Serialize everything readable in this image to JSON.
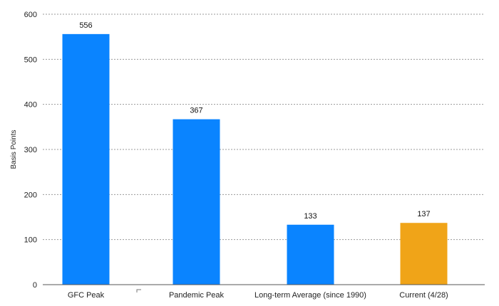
{
  "chart_data": {
    "type": "bar",
    "title": "",
    "xlabel": "",
    "ylabel": "Basis Points",
    "ylim": [
      0,
      600
    ],
    "yticks": [
      0,
      100,
      200,
      300,
      400,
      500,
      600
    ],
    "grid": true,
    "categories": [
      "GFC Peak",
      "Pandemic Peak",
      "Long-term Average (since 1990)",
      "Current (4/28)"
    ],
    "values": [
      556,
      367,
      133,
      137
    ],
    "data_labels": [
      "556",
      "367",
      "133",
      "137"
    ],
    "colors": [
      "#0a84ff",
      "#0a84ff",
      "#0a84ff",
      "#f0a418"
    ]
  }
}
